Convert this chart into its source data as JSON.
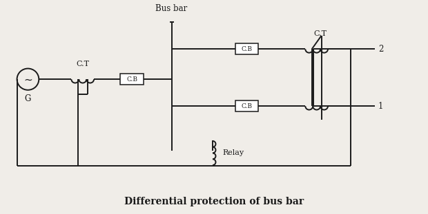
{
  "title": "Differential protection of bus bar",
  "bg": "#f0ede8",
  "lc": "#1a1a1a",
  "fig_w": 6.2,
  "fig_h": 3.11,
  "dpi": 100,
  "labels": {
    "bus_bar": "Bus bar",
    "CT_left": "C.T",
    "CT_right": "C.T",
    "CB_left": "C.B",
    "CB_top": "C.B",
    "CB_bot": "C.B",
    "relay": "Relay",
    "G": "G",
    "L1": "1",
    "L2": "2"
  }
}
